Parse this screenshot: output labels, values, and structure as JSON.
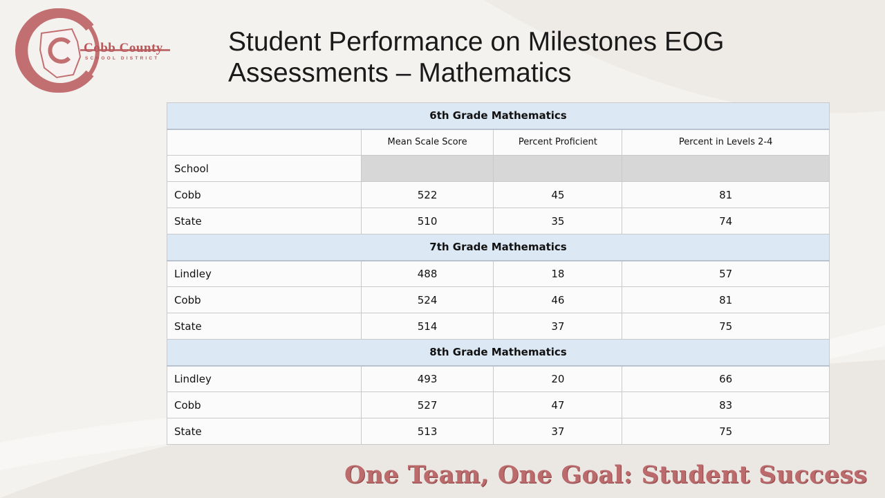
{
  "slide": {
    "title_line1": "Student Performance on Milestones EOG",
    "title_line2": "Assessments – Mathematics",
    "tagline": "One Team, One Goal: Student Success"
  },
  "logo": {
    "name": "Cobb County",
    "subtitle": "School District",
    "icon": "cobb-county-map-logo-icon",
    "color": "#b8595c"
  },
  "table": {
    "column_headers": [
      "",
      "Mean Scale Score",
      "Percent Proficient",
      "Percent in Levels 2-4"
    ],
    "sections": [
      {
        "title": "6th Grade Mathematics",
        "rows": [
          {
            "label": "School",
            "values": [
              "",
              "",
              ""
            ],
            "shaded": true
          },
          {
            "label": "Cobb",
            "values": [
              "522",
              "45",
              "81"
            ]
          },
          {
            "label": "State",
            "values": [
              "510",
              "35",
              "74"
            ]
          }
        ]
      },
      {
        "title": "7th Grade Mathematics",
        "rows": [
          {
            "label": "Lindley",
            "values": [
              "488",
              "18",
              "57"
            ]
          },
          {
            "label": "Cobb",
            "values": [
              "524",
              "46",
              "81"
            ]
          },
          {
            "label": "State",
            "values": [
              "514",
              "37",
              "75"
            ]
          }
        ]
      },
      {
        "title": "8th Grade Mathematics",
        "rows": [
          {
            "label": "Lindley",
            "values": [
              "493",
              "20",
              "66"
            ]
          },
          {
            "label": "Cobb",
            "values": [
              "527",
              "47",
              "83"
            ]
          },
          {
            "label": "State",
            "values": [
              "513",
              "37",
              "75"
            ]
          }
        ]
      }
    ]
  },
  "colors": {
    "section_header_bg": "#dde8f5",
    "shaded_cell_bg": "#d7d7d7",
    "brand_red": "#b8595c",
    "tagline_color": "#bc6b6c"
  }
}
